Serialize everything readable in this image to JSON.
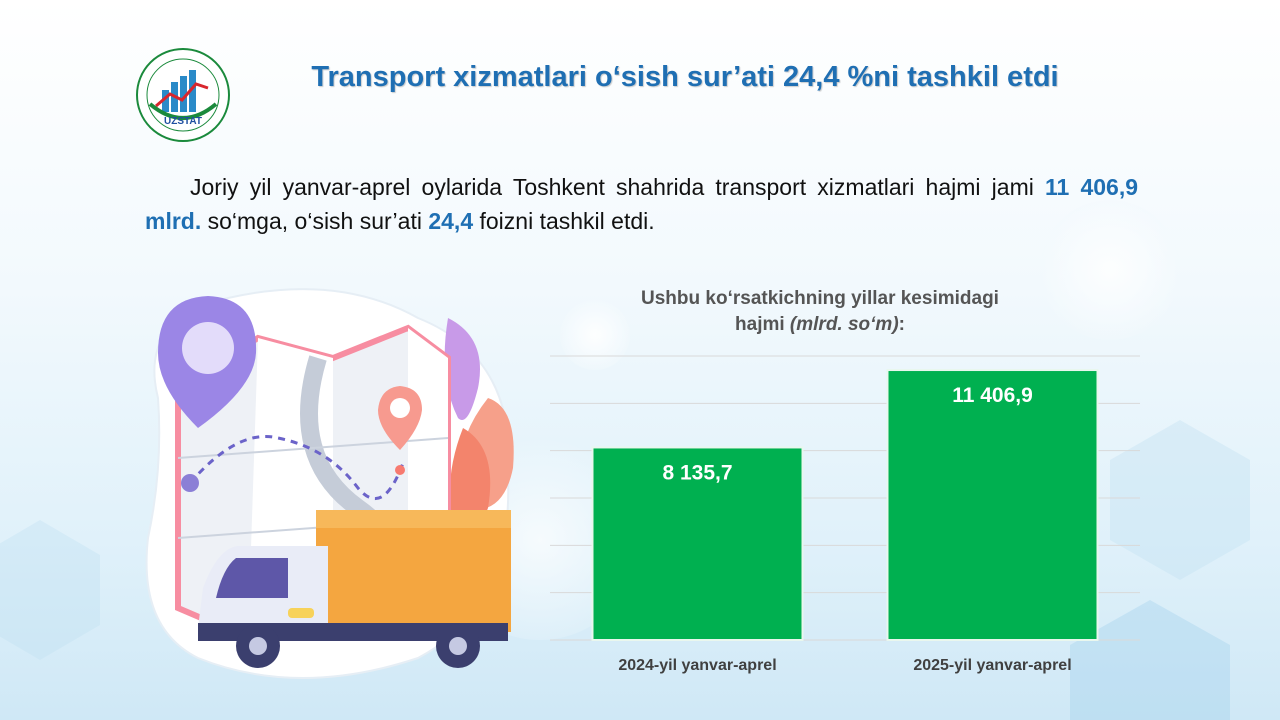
{
  "logo": {
    "text": "UZSTAT",
    "ring_top": "TOSHKENT SHAHAR",
    "ring_bottom": "STATISTIKA BOSHQARMASI"
  },
  "title": "Transport xizmatlari o‘sish sur’ati 24,4 %ni tashkil etdi",
  "paragraph": {
    "part1": "Joriy yil yanvar-aprel oylarida Toshkent shahrida transport xizmatlari hajmi jami ",
    "hl1": "11 406,9   mlrd.",
    "part2": " so‘mga, o‘sish sur’ati ",
    "hl2": "24,4",
    "part3": " foizni tashkil etdi."
  },
  "chart_title": {
    "line1": "Ushbu ko‘rsatkichning yillar kesimidagi",
    "line2_prefix": "hajmi ",
    "line2_unit": "(mlrd. so‘m)",
    "line2_suffix": ":"
  },
  "colors": {
    "bar": "#00b050",
    "title": "#1f6fb3",
    "grid": "#d9d9d9"
  },
  "chart_data": {
    "type": "bar",
    "categories": [
      "2024-yil yanvar-aprel",
      "2025-yil yanvar-aprel"
    ],
    "values": [
      8135.7,
      11406.9
    ],
    "labels": [
      "8 135,7",
      "11 406,9"
    ],
    "ylim": [
      0,
      12000
    ],
    "grid": true,
    "legend": "none"
  }
}
